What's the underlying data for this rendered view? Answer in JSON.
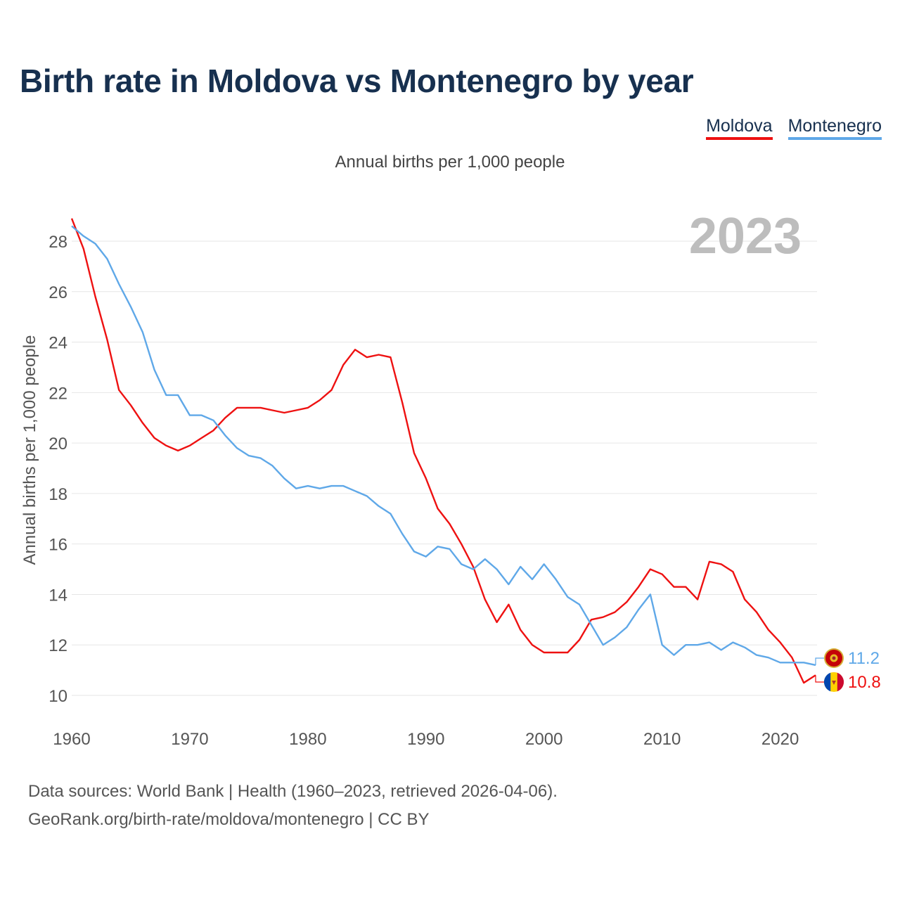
{
  "title": "Birth rate in Moldova vs Montenegro by year",
  "subtitle": "Annual births per 1,000 people",
  "legend": [
    {
      "name": "Moldova",
      "color": "#ee1111"
    },
    {
      "name": "Montenegro",
      "color": "#5fa8e8"
    }
  ],
  "year_label": "2023",
  "footer": {
    "line1": "Data sources: World Bank | Health (1960–2023, retrieved 2026-04-06).",
    "line2": "GeoRank.org/birth-rate/moldova/montenegro | CC BY"
  },
  "chart_data": {
    "type": "line",
    "title": "Birth rate in Moldova vs Montenegro by year",
    "xlabel": "",
    "ylabel": "Annual births per 1,000 people",
    "xlim": [
      1960,
      2023
    ],
    "ylim": [
      9,
      29.5
    ],
    "yticks": [
      10,
      12,
      14,
      16,
      18,
      20,
      22,
      24,
      26,
      28
    ],
    "xticks": [
      1960,
      1970,
      1980,
      1990,
      2000,
      2010,
      2020
    ],
    "grid": true,
    "legend_position": "top-right",
    "x": [
      1960,
      1961,
      1962,
      1963,
      1964,
      1965,
      1966,
      1967,
      1968,
      1969,
      1970,
      1971,
      1972,
      1973,
      1974,
      1975,
      1976,
      1977,
      1978,
      1979,
      1980,
      1981,
      1982,
      1983,
      1984,
      1985,
      1986,
      1987,
      1988,
      1989,
      1990,
      1991,
      1992,
      1993,
      1994,
      1995,
      1996,
      1997,
      1998,
      1999,
      2000,
      2001,
      2002,
      2003,
      2004,
      2005,
      2006,
      2007,
      2008,
      2009,
      2010,
      2011,
      2012,
      2013,
      2014,
      2015,
      2016,
      2017,
      2018,
      2019,
      2020,
      2021,
      2022,
      2023
    ],
    "series": [
      {
        "name": "Moldova",
        "color": "#ee1111",
        "end_label": "10.8",
        "values": [
          28.9,
          27.7,
          25.8,
          24.1,
          22.1,
          21.5,
          20.8,
          20.2,
          19.9,
          19.7,
          19.9,
          20.2,
          20.5,
          21.0,
          21.4,
          21.4,
          21.4,
          21.3,
          21.2,
          21.3,
          21.4,
          21.7,
          22.1,
          23.1,
          23.7,
          23.4,
          23.5,
          23.4,
          21.6,
          19.6,
          18.6,
          17.4,
          16.8,
          16.0,
          15.1,
          13.8,
          12.9,
          13.6,
          12.6,
          12.0,
          11.7,
          11.7,
          11.7,
          12.2,
          13.0,
          13.1,
          13.3,
          13.7,
          14.3,
          15.0,
          14.8,
          14.3,
          14.3,
          13.8,
          15.3,
          15.2,
          14.9,
          13.8,
          13.3,
          12.6,
          12.1,
          11.5,
          10.5,
          10.8
        ]
      },
      {
        "name": "Montenegro",
        "color": "#5fa8e8",
        "end_label": "11.2",
        "values": [
          28.6,
          28.2,
          27.9,
          27.3,
          26.3,
          25.4,
          24.4,
          22.9,
          21.9,
          21.9,
          21.1,
          21.1,
          20.9,
          20.3,
          19.8,
          19.5,
          19.4,
          19.1,
          18.6,
          18.2,
          18.3,
          18.2,
          18.3,
          18.3,
          18.1,
          17.9,
          17.5,
          17.2,
          16.4,
          15.7,
          15.5,
          15.9,
          15.8,
          15.2,
          15.0,
          15.4,
          15.0,
          14.4,
          15.1,
          14.6,
          15.2,
          14.6,
          13.9,
          13.6,
          12.8,
          12.0,
          12.3,
          12.7,
          13.4,
          14.0,
          12.0,
          11.6,
          12.0,
          12.0,
          12.1,
          11.8,
          12.1,
          11.9,
          11.6,
          11.5,
          11.3,
          11.3,
          11.3,
          11.2
        ]
      }
    ]
  }
}
